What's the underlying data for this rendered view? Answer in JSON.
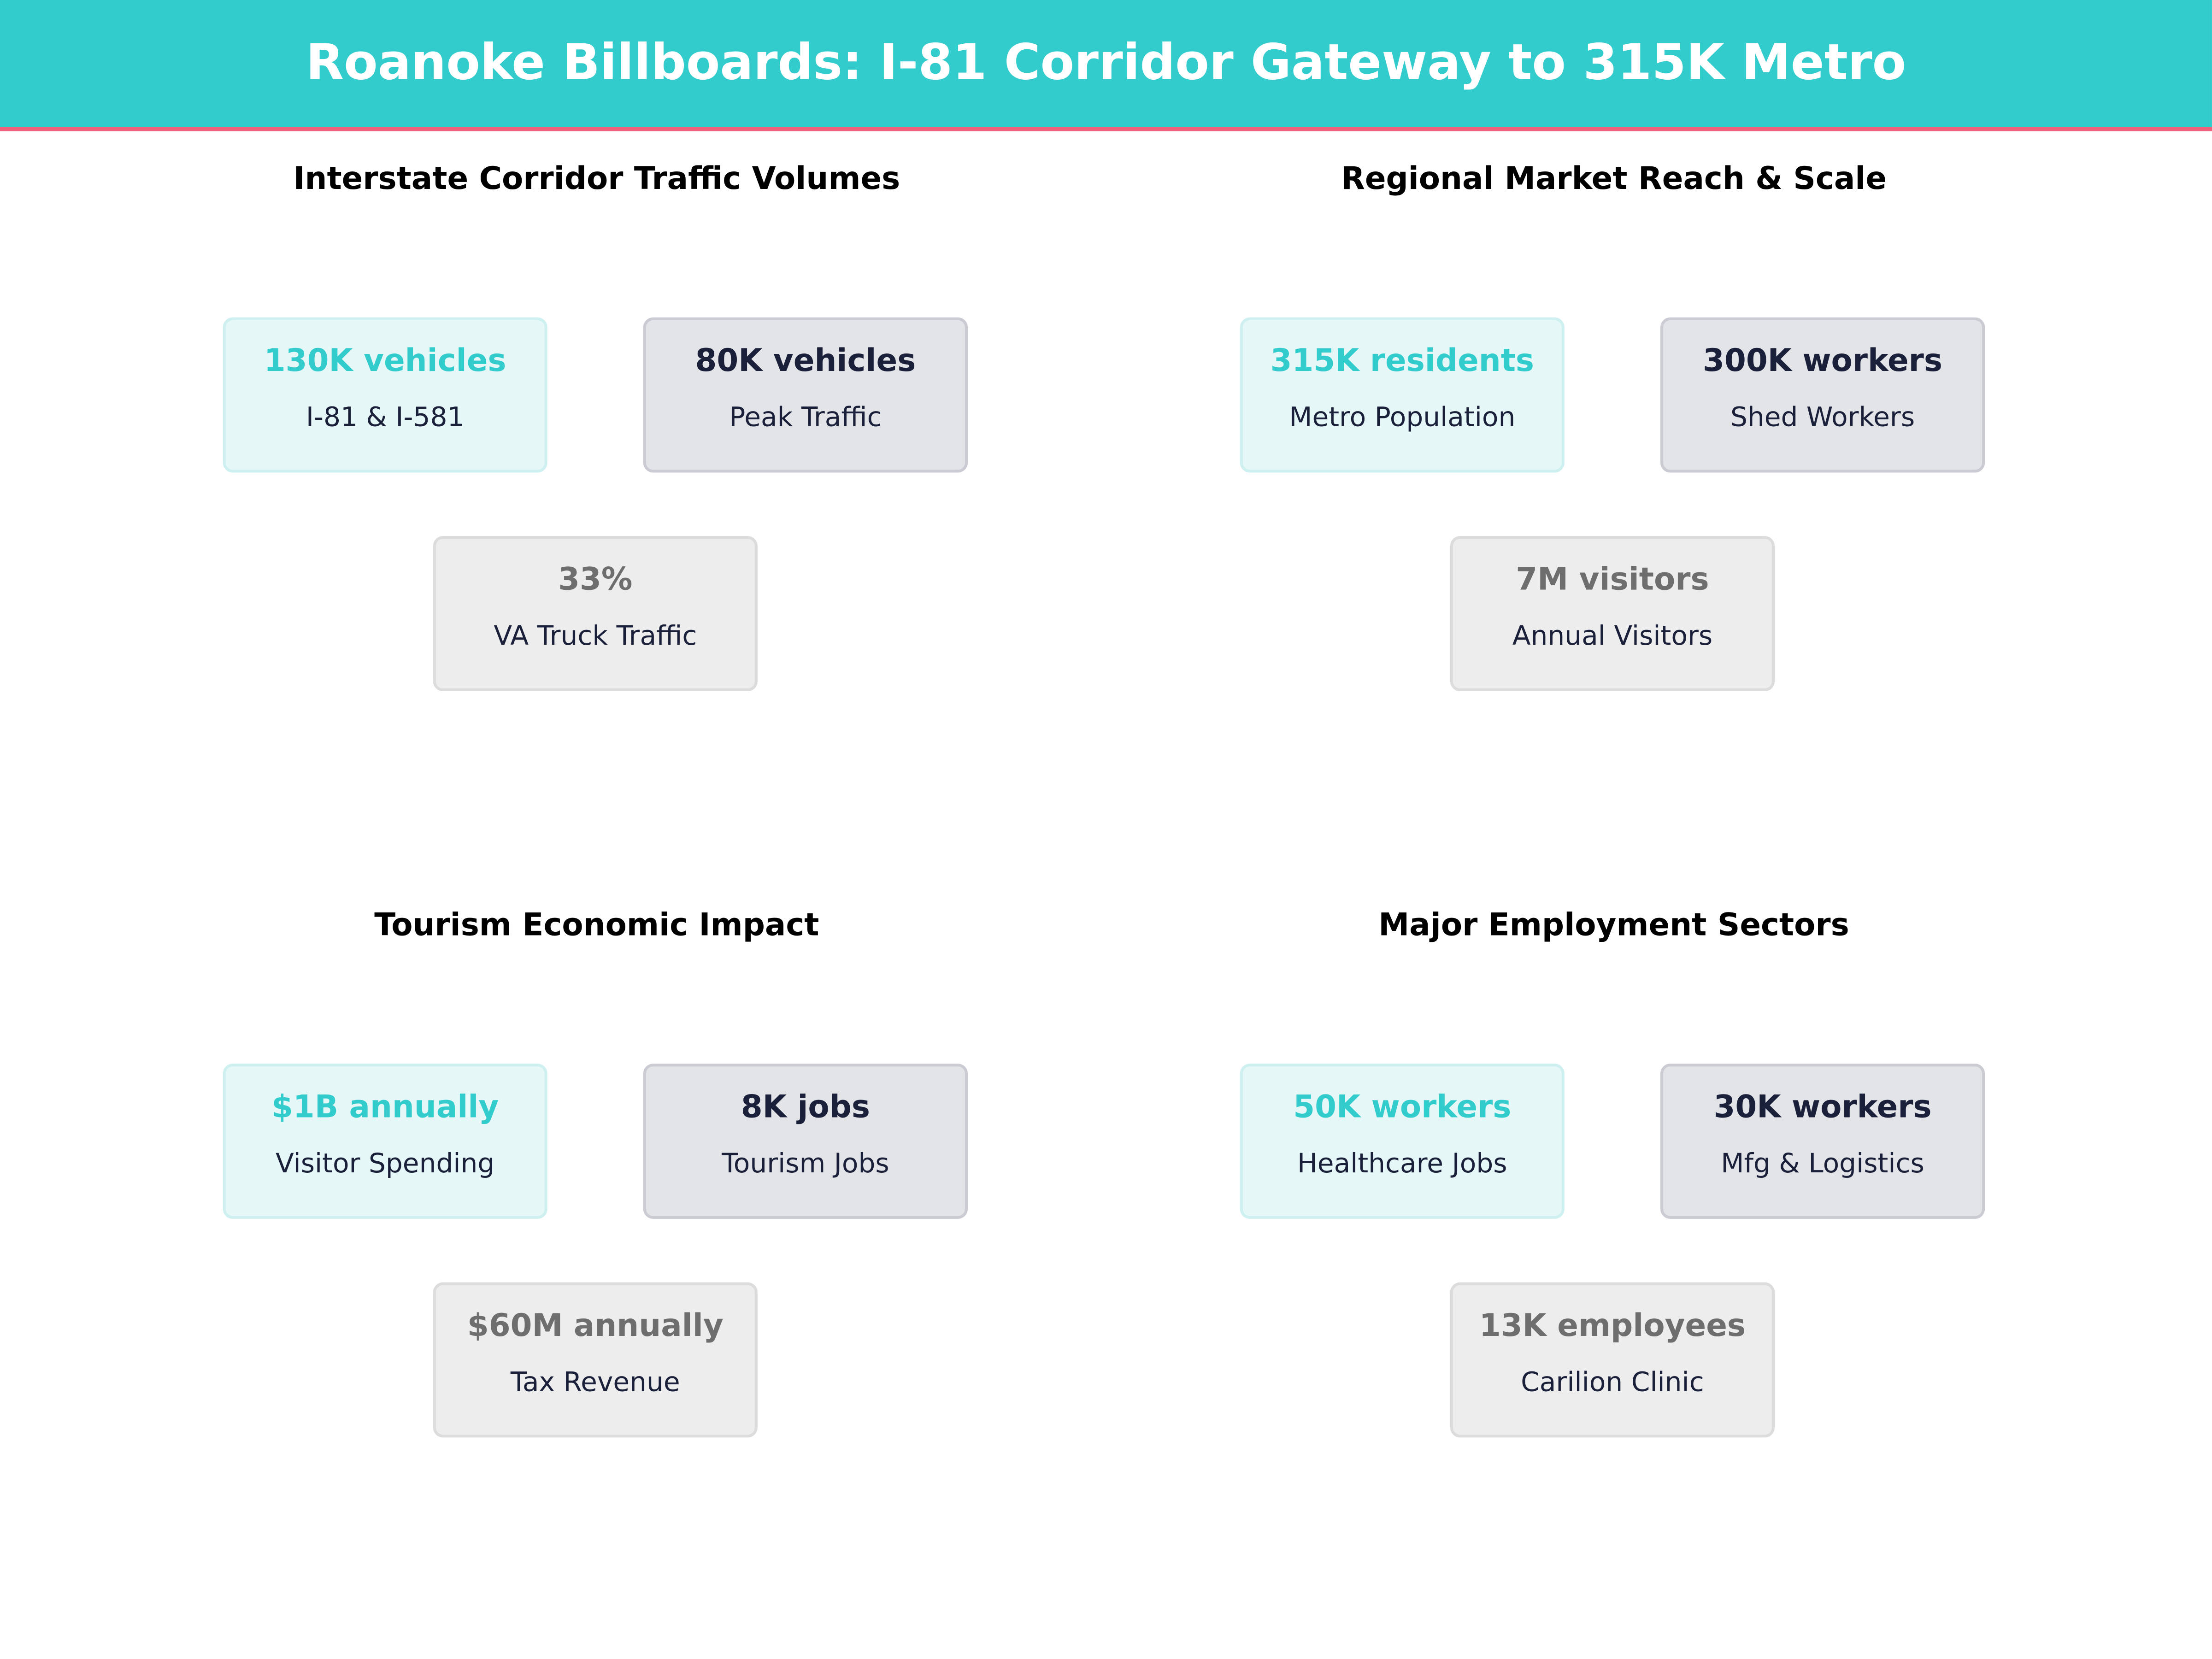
{
  "title": "Roanoke Billboards: I-81 Corridor Gateway to 315K Metro",
  "colors": {
    "accent": "#33CCCC",
    "header_rule": "#F0627A",
    "dark": "#1A1F3A",
    "muted": "#6E6E6E"
  },
  "panels": [
    {
      "title": "Interstate Corridor Traffic Volumes",
      "cards": [
        {
          "value": "130K vehicles",
          "label": "I-81 & I-581"
        },
        {
          "value": "80K vehicles",
          "label": "Peak Traffic"
        },
        {
          "value": "33%",
          "label": "VA Truck Traffic"
        }
      ]
    },
    {
      "title": "Regional Market Reach & Scale",
      "cards": [
        {
          "value": "315K residents",
          "label": "Metro Population"
        },
        {
          "value": "300K workers",
          "label": "Shed Workers"
        },
        {
          "value": "7M visitors",
          "label": "Annual Visitors"
        }
      ]
    },
    {
      "title": "Tourism Economic Impact",
      "cards": [
        {
          "value": "$1B annually",
          "label": "Visitor Spending"
        },
        {
          "value": "8K jobs",
          "label": "Tourism Jobs"
        },
        {
          "value": "$60M annually",
          "label": "Tax Revenue"
        }
      ]
    },
    {
      "title": "Major Employment Sectors",
      "cards": [
        {
          "value": "50K workers",
          "label": "Healthcare Jobs"
        },
        {
          "value": "30K workers",
          "label": "Mfg & Logistics"
        },
        {
          "value": "13K employees",
          "label": "Carilion Clinic"
        }
      ]
    }
  ]
}
